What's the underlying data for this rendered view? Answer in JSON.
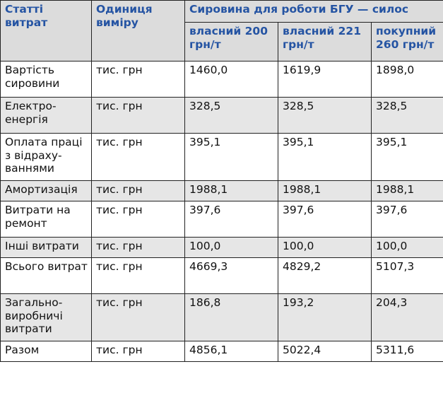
{
  "table": {
    "header": {
      "col1": "Статті витрат",
      "col2": "Одиниця виміру",
      "group": "Сировина для роботи БГУ — силос",
      "sub": [
        "власний 200 грн/т",
        "власний 221 грн/т",
        "покупний 260 грн/т"
      ]
    },
    "rows": [
      {
        "item": "Вартість сировини",
        "unit": "тис. грн",
        "v": [
          "1460,0",
          "1619,9",
          "1898,0"
        ]
      },
      {
        "item": "Електро-енергія",
        "unit": "тис. грн",
        "v": [
          "328,5",
          "328,5",
          "328,5"
        ]
      },
      {
        "item": "Оплата праці з відраху-ваннями",
        "unit": "тис. грн",
        "v": [
          "395,1",
          "395,1",
          "395,1"
        ]
      },
      {
        "item": "Амортизація",
        "unit": "тис. грн",
        "v": [
          "1988,1",
          "1988,1",
          "1988,1"
        ]
      },
      {
        "item": "Витрати на ремонт",
        "unit": "тис. грн",
        "v": [
          "397,6",
          "397,6",
          "397,6"
        ]
      },
      {
        "item": "Інші витрати",
        "unit": "тис. грн",
        "v": [
          "100,0",
          "100,0",
          "100,0"
        ]
      },
      {
        "item": "Всього витрат",
        "unit": "тис. грн",
        "v": [
          "4669,3",
          "4829,2",
          "5107,3"
        ]
      },
      {
        "item": "Загально-виробничі витрати",
        "unit": "тис. грн",
        "v": [
          "186,8",
          "193,2",
          "204,3"
        ]
      },
      {
        "item": "Разом",
        "unit": "тис. грн",
        "v": [
          "4856,1",
          "5022,4",
          "5311,6"
        ]
      }
    ]
  },
  "colors": {
    "header_text": "#2554a3",
    "header_bg": "#dcdcdc",
    "alt_row_bg": "#e6e6e6"
  }
}
